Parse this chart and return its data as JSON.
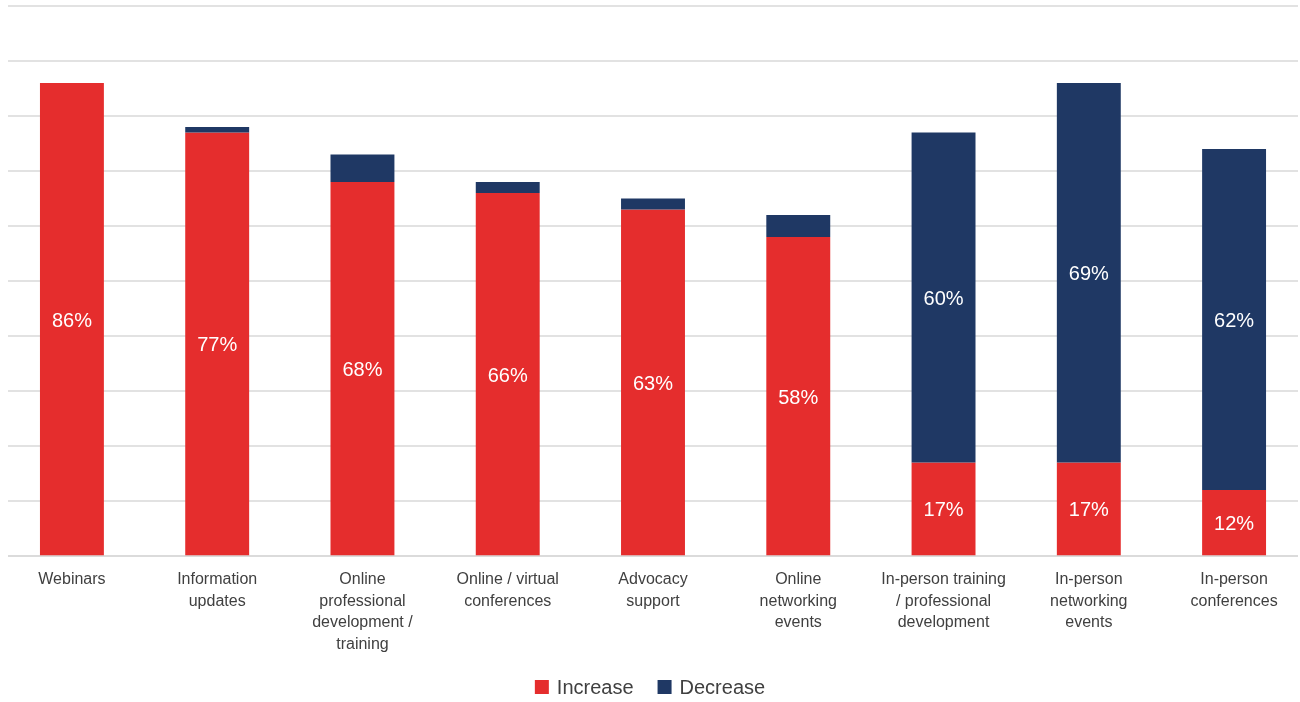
{
  "chart_data": {
    "type": "bar",
    "stacked": true,
    "categories": [
      "Webinars",
      "Information updates",
      "Online professional development / training",
      "Online / virtual conferences",
      "Advocacy support",
      "Online networking events",
      "In-person training / professional development",
      "In-person networking events",
      "In-person conferences"
    ],
    "series": [
      {
        "name": "Increase",
        "color": "#e52d2d",
        "values": [
          86,
          77,
          68,
          66,
          63,
          58,
          17,
          17,
          12
        ],
        "value_labels": [
          "86%",
          "77%",
          "68%",
          "66%",
          "63%",
          "58%",
          "17%",
          "17%",
          "12%"
        ]
      },
      {
        "name": "Decrease",
        "color": "#1f3864",
        "values": [
          0,
          1,
          5,
          2,
          2,
          4,
          60,
          69,
          62
        ],
        "value_labels": [
          null,
          null,
          null,
          null,
          null,
          null,
          "60%",
          "69%",
          "62%"
        ]
      }
    ],
    "ylim": [
      0,
      100
    ],
    "yticks": [
      {
        "value": 0,
        "label": null
      },
      {
        "value": 10,
        "label": null
      },
      {
        "value": 20,
        "label": null
      },
      {
        "value": 30,
        "label": null
      },
      {
        "value": 40,
        "label": null
      },
      {
        "value": 50,
        "label": null
      },
      {
        "value": 60,
        "label": null
      },
      {
        "value": 70,
        "label": null
      },
      {
        "value": 80,
        "label": null
      },
      {
        "value": 90,
        "label": null
      },
      {
        "value": 100,
        "label": null
      }
    ],
    "tick_labels": "x",
    "grid": "y",
    "legend": "bottom"
  }
}
